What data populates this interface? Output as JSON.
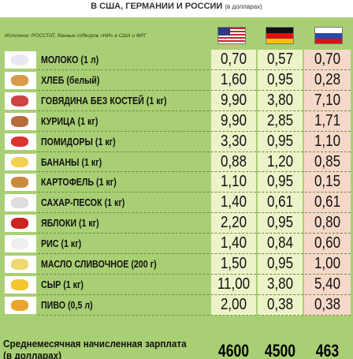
{
  "header": {
    "title": "В США, ГЕРМАНИИ И РОССИИ",
    "title_note": "(в долларах)",
    "source": "Источник: РОССТАТ, данные собкоров «НИ» в США и ФРГ"
  },
  "table": {
    "rows": [
      [
        "МОЛОКО (1 л)",
        "0,70",
        "0,57",
        "0,70"
      ],
      [
        "ХЛЕБ (белый)",
        "1,60",
        "0,95",
        "0,28"
      ],
      [
        "ГОВЯДИНА БЕЗ КОСТЕЙ (1 кг)",
        "9,90",
        "3,80",
        "7,10"
      ],
      [
        "КУРИЦА (1 кг)",
        "9,90",
        "2,85",
        "1,71"
      ],
      [
        "ПОМИДОРЫ (1 кг)",
        "3,30",
        "0,95",
        "1,10"
      ],
      [
        "БАНАНЫ (1 кг)",
        "0,88",
        "1,20",
        "0,85"
      ],
      [
        "КАРТОФЕЛЬ (1 кг)",
        "1,10",
        "0,95",
        "0,15"
      ],
      [
        "САХАР-ПЕСОК (1 кг)",
        "1,40",
        "0,61",
        "0,61"
      ],
      [
        "ЯБЛОКИ (1 кг)",
        "2,20",
        "0,95",
        "0,80"
      ],
      [
        "РИС (1 кг)",
        "1,40",
        "0,84",
        "0,60"
      ],
      [
        "МАСЛО СЛИВОЧНОЕ (200 г)",
        "1,50",
        "0,95",
        "1,00"
      ],
      [
        "СЫР (1 кг)",
        "11,00",
        "3,80",
        "5,40"
      ],
      [
        "ПИВО (0,5 л)",
        "2,00",
        "0,38",
        "0,38"
      ]
    ]
  },
  "footer": {
    "label": "Среднемесячная начисленная зарплата (в долларах)",
    "values": [
      "4600",
      "4500",
      "463"
    ]
  }
}
